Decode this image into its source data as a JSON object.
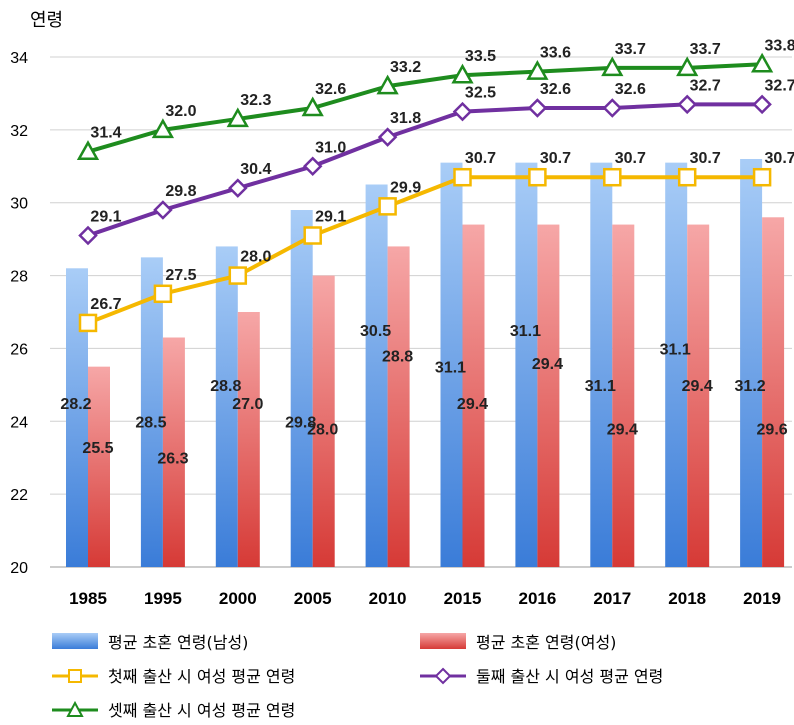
{
  "chart_data": {
    "type": "bar",
    "ylabel": "연령",
    "ylim": [
      20,
      34
    ],
    "yticks": [
      20,
      22,
      24,
      26,
      28,
      30,
      32,
      34
    ],
    "grid": true,
    "legend_position": "bottom",
    "categories": [
      "1985",
      "1995",
      "2000",
      "2005",
      "2010",
      "2015",
      "2016",
      "2017",
      "2018",
      "2019"
    ],
    "bar_series": [
      {
        "name": "평균 초혼 연령(남성)",
        "color": "#5b9bd5",
        "values": [
          28.2,
          28.5,
          28.8,
          29.8,
          30.5,
          31.1,
          31.1,
          31.1,
          31.1,
          31.2
        ]
      },
      {
        "name": "평균 초혼 연령(여성)",
        "color": "#e06666",
        "values": [
          25.5,
          26.3,
          27.0,
          28.0,
          28.8,
          29.4,
          29.4,
          29.4,
          29.4,
          29.6
        ]
      }
    ],
    "line_series": [
      {
        "name": "첫째 출산 시 여성 평균 연령",
        "color": "#f5b800",
        "marker": "square",
        "values": [
          26.7,
          27.5,
          28.0,
          29.1,
          29.9,
          30.7,
          30.7,
          30.7,
          30.7,
          30.7
        ]
      },
      {
        "name": "둘째 출산 시 여성 평균 연령",
        "color": "#7030a0",
        "marker": "diamond",
        "values": [
          29.1,
          29.8,
          30.4,
          31.0,
          31.8,
          32.5,
          32.6,
          32.6,
          32.7,
          32.7
        ]
      },
      {
        "name": "셋째 출산 시 여성 평균 연령",
        "color": "#1e8c1e",
        "marker": "triangle",
        "values": [
          31.4,
          32.0,
          32.3,
          32.6,
          33.2,
          33.5,
          33.6,
          33.7,
          33.7,
          33.8
        ]
      }
    ]
  }
}
